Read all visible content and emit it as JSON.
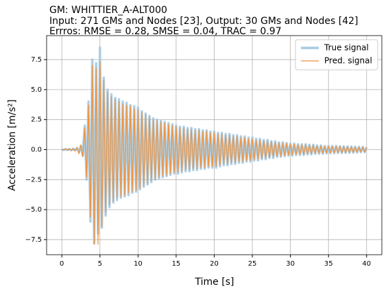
{
  "chart_data": {
    "type": "line",
    "title": [
      "GM: WHITTIER_A-ALT000",
      "Input: 271 GMs and Nodes [23], Output: 30 GMs and Nodes [42]",
      "Errros: RMSE = 0.28, SMSE = 0.04, TRAC = 0.97"
    ],
    "xlabel": "Time [s]",
    "ylabel": "Acceleration [m/s²]",
    "xlim": [
      -2,
      42
    ],
    "ylim": [
      -8.76,
      9.5
    ],
    "xticks": [
      0,
      5,
      10,
      15,
      20,
      25,
      30,
      35,
      40
    ],
    "yticks": [
      {
        "value": -7.5,
        "label": "−7.5"
      },
      {
        "value": -5,
        "label": "−5.0"
      },
      {
        "value": -2.5,
        "label": "−2.5"
      },
      {
        "value": 0,
        "label": "0.0"
      },
      2.5,
      {
        "value": 5,
        "label": "5.0"
      },
      7.5
    ],
    "grid": true,
    "legend": "upper right",
    "x": [
      0,
      0.25,
      0.5,
      0.75,
      1,
      1.25,
      1.5,
      1.75,
      2,
      2.25,
      2.5,
      2.75,
      3,
      3.25,
      3.5,
      3.75,
      4,
      4.25,
      4.5,
      4.75,
      5,
      5.25,
      5.5,
      5.75,
      6,
      6.25,
      6.5,
      6.75,
      7,
      7.25,
      7.5,
      7.75,
      8,
      8.25,
      8.5,
      8.75,
      9,
      9.25,
      9.5,
      9.75,
      10,
      10.25,
      10.5,
      10.75,
      11,
      11.25,
      11.5,
      11.75,
      12,
      12.25,
      12.5,
      12.75,
      13,
      13.25,
      13.5,
      13.75,
      14,
      14.25,
      14.5,
      14.75,
      15,
      15.25,
      15.5,
      15.75,
      16,
      16.25,
      16.5,
      16.75,
      17,
      17.25,
      17.5,
      17.75,
      18,
      18.25,
      18.5,
      18.75,
      19,
      19.25,
      19.5,
      19.75,
      20,
      20.25,
      20.5,
      20.75,
      21,
      21.25,
      21.5,
      21.75,
      22,
      22.25,
      22.5,
      22.75,
      23,
      23.25,
      23.5,
      23.75,
      24,
      24.25,
      24.5,
      24.75,
      25,
      25.25,
      25.5,
      25.75,
      26,
      26.25,
      26.5,
      26.75,
      27,
      27.25,
      27.5,
      27.75,
      28,
      28.25,
      28.5,
      28.75,
      29,
      29.25,
      29.5,
      29.75,
      30,
      30.25,
      30.5,
      30.75,
      31,
      31.25,
      31.5,
      31.75,
      32,
      32.25,
      32.5,
      32.75,
      33,
      33.25,
      33.5,
      33.75,
      34,
      34.25,
      34.5,
      34.75,
      35,
      35.25,
      35.5,
      35.75,
      36,
      36.25,
      36.5,
      36.75,
      37,
      37.25,
      37.5,
      37.75,
      38,
      38.25,
      38.5,
      38.75,
      39,
      39.25,
      39.5,
      39.75,
      40
    ],
    "series": [
      {
        "name": "True signal",
        "color": "#a6cbe3",
        "values": [
          0,
          -0.03,
          0.04,
          -0.03,
          0.05,
          -0.05,
          0.06,
          -0.05,
          0.1,
          -0.2,
          0.3,
          -0.5,
          2.0,
          -2.5,
          4.0,
          -6.0,
          7.5,
          -7.8,
          7.2,
          -7.0,
          8.5,
          -6.5,
          6.0,
          -5.5,
          5.0,
          -4.8,
          4.6,
          -4.4,
          4.3,
          -4.2,
          4.2,
          -4.0,
          4.0,
          -3.9,
          3.9,
          -3.8,
          3.7,
          -3.6,
          3.6,
          -3.5,
          3.5,
          -3.3,
          3.2,
          -3.1,
          3.0,
          -2.9,
          2.8,
          -2.7,
          2.6,
          -2.5,
          2.5,
          -2.4,
          2.4,
          -2.3,
          2.3,
          -2.2,
          2.2,
          -2.1,
          2.1,
          -2.0,
          2.0,
          -2.0,
          1.9,
          -1.9,
          1.9,
          -1.8,
          1.8,
          -1.8,
          1.8,
          -1.7,
          1.7,
          -1.7,
          1.7,
          -1.6,
          1.6,
          -1.6,
          1.6,
          -1.5,
          1.5,
          -1.5,
          1.5,
          -1.5,
          1.4,
          -1.4,
          1.4,
          -1.3,
          1.3,
          -1.3,
          1.3,
          -1.2,
          1.2,
          -1.2,
          1.2,
          -1.1,
          1.1,
          -1.1,
          1.1,
          -1.0,
          1.0,
          -1.0,
          1.0,
          -0.9,
          0.9,
          -0.9,
          0.9,
          -0.8,
          0.8,
          -0.8,
          0.8,
          -0.7,
          0.7,
          -0.7,
          0.7,
          -0.6,
          0.6,
          -0.6,
          0.6,
          -0.55,
          0.55,
          -0.5,
          0.5,
          -0.5,
          0.5,
          -0.45,
          0.45,
          -0.45,
          0.45,
          -0.45,
          0.45,
          -0.4,
          0.4,
          -0.4,
          0.4,
          -0.35,
          0.35,
          -0.35,
          0.35,
          -0.35,
          0.3,
          -0.3,
          0.3,
          -0.3,
          0.3,
          -0.3,
          0.3,
          -0.28,
          0.28,
          -0.28,
          0.27,
          -0.27,
          0.26,
          -0.26,
          0.25,
          -0.25,
          0.24,
          -0.24,
          0.23,
          -0.22,
          0.22,
          -0.21,
          0.2
        ]
      },
      {
        "name": "Pred. signal",
        "color": "#f0913a",
        "values": [
          0,
          -0.02,
          0.05,
          -0.04,
          0.06,
          -0.08,
          0.1,
          -0.12,
          0.2,
          -0.35,
          0.4,
          -0.6,
          1.8,
          -2.3,
          3.7,
          -5.6,
          7.0,
          -7.9,
          6.8,
          -7.9,
          7.3,
          -6.4,
          5.8,
          -5.2,
          4.8,
          -4.6,
          4.4,
          -4.3,
          4.2,
          -4.0,
          4.0,
          -3.9,
          3.8,
          -3.8,
          3.7,
          -3.6,
          3.6,
          -3.5,
          3.4,
          -3.4,
          3.3,
          -3.2,
          3.1,
          -3.0,
          2.9,
          -2.8,
          2.7,
          -2.6,
          2.5,
          -2.5,
          2.4,
          -2.3,
          2.3,
          -2.2,
          2.2,
          -2.1,
          2.1,
          -2.0,
          2.0,
          -1.9,
          1.9,
          -1.9,
          1.8,
          -1.8,
          1.8,
          -1.7,
          1.7,
          -1.7,
          1.7,
          -1.6,
          1.6,
          -1.6,
          1.6,
          -1.5,
          1.5,
          -1.5,
          1.5,
          -1.4,
          1.4,
          -1.4,
          1.4,
          -1.4,
          1.3,
          -1.3,
          1.3,
          -1.2,
          1.2,
          -1.2,
          1.2,
          -1.1,
          1.1,
          -1.1,
          1.1,
          -1.0,
          1.0,
          -1.0,
          1.0,
          -0.9,
          0.9,
          -0.9,
          0.9,
          -0.8,
          0.8,
          -0.8,
          0.8,
          -0.75,
          0.75,
          -0.7,
          0.7,
          -0.65,
          0.65,
          -0.6,
          0.6,
          -0.55,
          0.55,
          -0.55,
          0.55,
          -0.5,
          0.5,
          -0.45,
          0.45,
          -0.45,
          0.45,
          -0.4,
          0.4,
          -0.4,
          0.4,
          -0.4,
          0.4,
          -0.35,
          0.35,
          -0.35,
          0.35,
          -0.3,
          0.3,
          -0.3,
          0.3,
          -0.3,
          0.28,
          -0.28,
          0.28,
          -0.27,
          0.27,
          -0.27,
          0.27,
          -0.26,
          0.26,
          -0.26,
          0.25,
          -0.25,
          0.24,
          -0.24,
          0.23,
          -0.23,
          0.22,
          -0.22,
          0.21,
          -0.2,
          0.2,
          -0.2,
          0.18
        ]
      }
    ]
  }
}
